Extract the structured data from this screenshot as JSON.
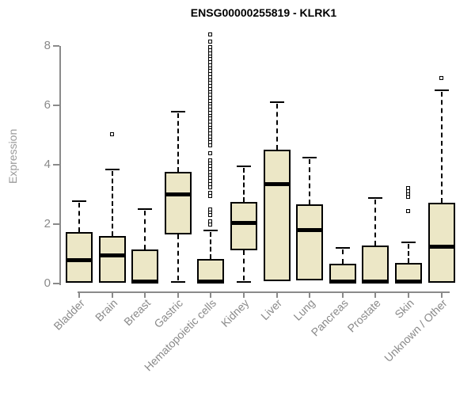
{
  "title": "ENSG00000255819 - KLRK1",
  "colors": {
    "box_fill": "#ece7c6",
    "box_border": "#000000",
    "median": "#000000",
    "whisker": "#000000",
    "axis": "#8a8a8a",
    "tick_label": "#8a8a8a",
    "axis_label": "#9a9a9a",
    "title": "#000000",
    "background": "#ffffff"
  },
  "chart_data": {
    "type": "boxplot",
    "title": "ENSG00000255819 - KLRK1",
    "xlabel": "",
    "ylabel": "Expression",
    "ylim": [
      0,
      8.6
    ],
    "yticks": [
      0,
      2,
      4,
      6,
      8
    ],
    "grid": false,
    "legend": "none",
    "categories": [
      "Bladder",
      "Brain",
      "Breast",
      "Gastric",
      "Hematopoietic cells",
      "Kidney",
      "Liver",
      "Lung",
      "Pancreas",
      "Prostate",
      "Skin",
      "Unknown / Other"
    ],
    "series": [
      {
        "name": "Bladder",
        "whisker_low": 0.03,
        "q1": 0.03,
        "median": 0.8,
        "q3": 1.73,
        "whisker_high": 2.77,
        "outliers": []
      },
      {
        "name": "Brain",
        "whisker_low": 0.03,
        "q1": 0.03,
        "median": 0.95,
        "q3": 1.6,
        "whisker_high": 3.85,
        "outliers": [
          5.02
        ]
      },
      {
        "name": "Breast",
        "whisker_low": 0.03,
        "q1": 0.03,
        "median": 0.08,
        "q3": 1.15,
        "whisker_high": 2.5,
        "outliers": []
      },
      {
        "name": "Gastric",
        "whisker_low": 0.05,
        "q1": 1.65,
        "median": 3.0,
        "q3": 3.76,
        "whisker_high": 5.78,
        "outliers": []
      },
      {
        "name": "Hematopoietic cells",
        "whisker_low": 0.03,
        "q1": 0.03,
        "median": 0.08,
        "q3": 0.83,
        "whisker_high": 1.8,
        "outliers": [
          8.4,
          8.15,
          7.95,
          7.85,
          7.75,
          7.65,
          7.55,
          7.45,
          7.35,
          7.25,
          7.15,
          7.05,
          6.95,
          6.85,
          6.75,
          6.65,
          6.55,
          6.45,
          6.35,
          6.25,
          6.15,
          6.05,
          5.95,
          5.85,
          5.75,
          5.65,
          5.55,
          5.45,
          5.35,
          5.25,
          5.15,
          5.05,
          4.95,
          4.85,
          4.75,
          4.65,
          4.4,
          4.15,
          4.05,
          3.95,
          3.85,
          3.75,
          3.65,
          3.55,
          3.45,
          3.35,
          3.25,
          3.05,
          2.95,
          2.5,
          2.4,
          2.3,
          2.1,
          2.0
        ]
      },
      {
        "name": "Kidney",
        "whisker_low": 0.05,
        "q1": 1.12,
        "median": 2.05,
        "q3": 2.75,
        "whisker_high": 3.95,
        "outliers": []
      },
      {
        "name": "Liver",
        "whisker_low": 0.08,
        "q1": 0.08,
        "median": 3.36,
        "q3": 4.51,
        "whisker_high": 6.1,
        "outliers": []
      },
      {
        "name": "Lung",
        "whisker_low": 0.1,
        "q1": 0.1,
        "median": 1.81,
        "q3": 2.67,
        "whisker_high": 4.24,
        "outliers": []
      },
      {
        "name": "Pancreas",
        "whisker_low": 0.03,
        "q1": 0.03,
        "median": 0.08,
        "q3": 0.67,
        "whisker_high": 1.21,
        "outliers": []
      },
      {
        "name": "Prostate",
        "whisker_low": 0.03,
        "q1": 0.03,
        "median": 0.08,
        "q3": 1.27,
        "whisker_high": 2.88,
        "outliers": []
      },
      {
        "name": "Skin",
        "whisker_low": 0.03,
        "q1": 0.03,
        "median": 0.08,
        "q3": 0.7,
        "whisker_high": 1.38,
        "outliers": [
          2.43,
          2.92,
          3.02,
          3.12,
          3.22
        ]
      },
      {
        "name": "Unknown / Other",
        "whisker_low": 0.03,
        "q1": 0.03,
        "median": 1.25,
        "q3": 2.73,
        "whisker_high": 6.5,
        "outliers": [
          6.93
        ]
      }
    ]
  }
}
